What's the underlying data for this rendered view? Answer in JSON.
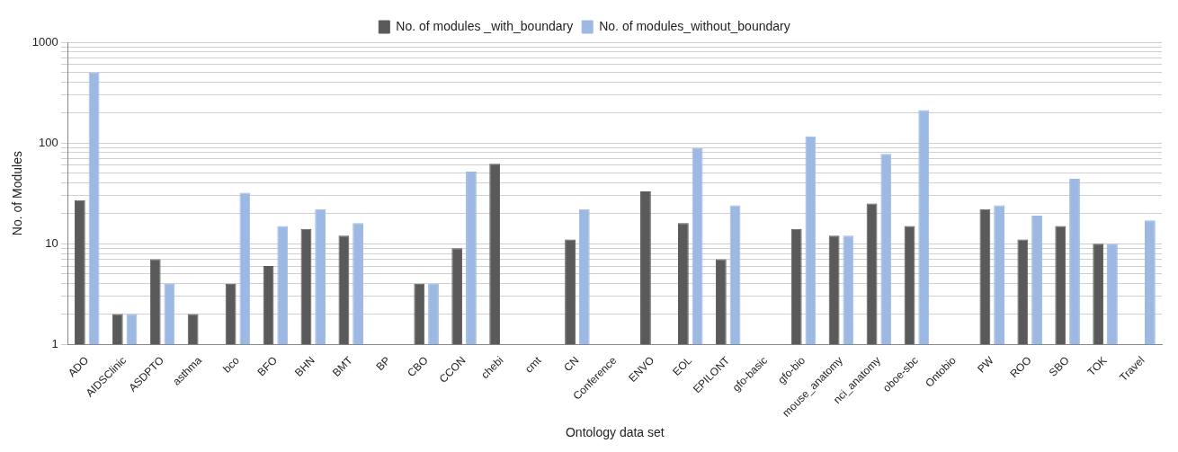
{
  "chart_data": {
    "type": "bar",
    "xlabel": "Ontology data set",
    "ylabel": "No. of Modules",
    "log": "y",
    "grid": "y",
    "legend": "top",
    "categories": [
      "ADO",
      "AIDSClinic",
      "ASDPTO",
      "asthma",
      "bco",
      "BFO",
      "BHN",
      "BMT",
      "BP",
      "CBO",
      "CCON",
      "chebi",
      "cmt",
      "CN",
      "Conference",
      "ENVO",
      "EOL",
      "EPILONT",
      "gfo-basic",
      "gfo-bio",
      "mouse_anatomy",
      "nci_anatomy",
      "oboe-sbc",
      "Ontobio",
      "PW",
      "ROO",
      "SBO",
      "TOK",
      "Travel"
    ],
    "ylim": [
      1,
      1000
    ],
    "yticks": [
      1,
      {
        "value": 2,
        "label": null
      },
      {
        "value": 3,
        "label": null
      },
      {
        "value": 4,
        "label": null
      },
      {
        "value": 5,
        "label": null
      },
      {
        "value": 6,
        "label": null
      },
      {
        "value": 7,
        "label": null
      },
      {
        "value": 8,
        "label": null
      },
      {
        "value": 9,
        "label": null
      },
      10,
      {
        "value": 20,
        "label": null
      },
      {
        "value": 30,
        "label": null
      },
      {
        "value": 40,
        "label": null
      },
      {
        "value": 50,
        "label": null
      },
      {
        "value": 60,
        "label": null
      },
      {
        "value": 70,
        "label": null
      },
      {
        "value": 80,
        "label": null
      },
      {
        "value": 90,
        "label": null
      },
      100,
      {
        "value": 200,
        "label": null
      },
      {
        "value": 300,
        "label": null
      },
      {
        "value": 400,
        "label": null
      },
      {
        "value": 500,
        "label": null
      },
      {
        "value": 600,
        "label": null
      },
      {
        "value": 700,
        "label": null
      },
      {
        "value": 800,
        "label": null
      },
      {
        "value": 900,
        "label": null
      },
      1000
    ],
    "series": [
      {
        "name": "No. of modules _with_boundary",
        "color": "#5a5a5a",
        "values": [
          27,
          2,
          7,
          2,
          4,
          6,
          14,
          12,
          null,
          4,
          9,
          62,
          null,
          11,
          null,
          33,
          16,
          7,
          null,
          14,
          12,
          25,
          15,
          null,
          22,
          11,
          15,
          10,
          null
        ]
      },
      {
        "name": "No. of modules_without_boundary",
        "color": "#9db9e3",
        "values": [
          500,
          2,
          4,
          null,
          32,
          15,
          22,
          16,
          null,
          4,
          52,
          null,
          null,
          22,
          null,
          null,
          89,
          24,
          null,
          116,
          12,
          78,
          212,
          null,
          24,
          19,
          44,
          10,
          17
        ]
      }
    ]
  }
}
